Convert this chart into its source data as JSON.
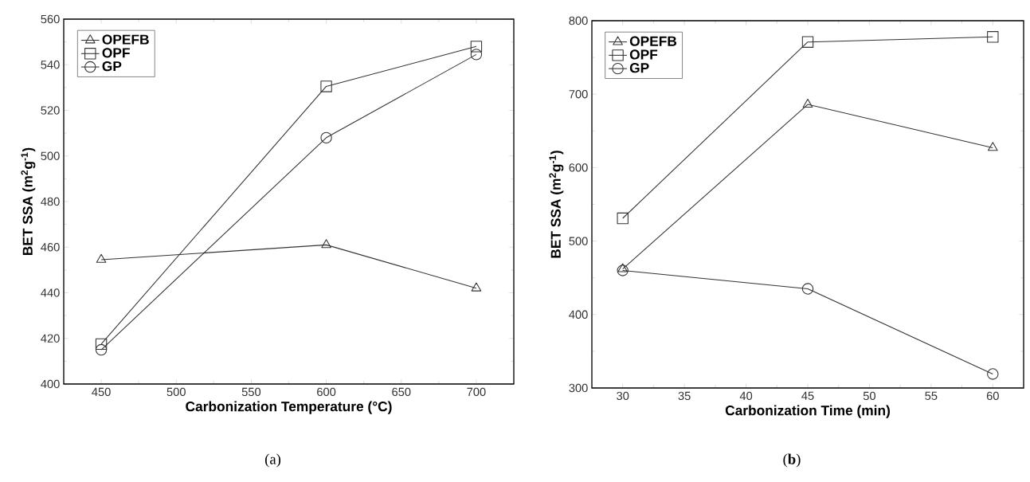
{
  "chart_data": [
    {
      "type": "line",
      "xlabel": "Carbonization Temperature (°C)",
      "ylabel": "BET SSA (m$^{2}$g$^{-1}$)",
      "x": [
        450,
        600,
        700
      ],
      "xlim": [
        425,
        725
      ],
      "xticks": [
        450,
        500,
        550,
        600,
        650,
        700
      ],
      "ylim": [
        400,
        560
      ],
      "yticks": [
        400,
        420,
        440,
        460,
        480,
        500,
        520,
        540,
        560
      ],
      "legend": "top left",
      "grid": false,
      "annotations": [
        "(a)"
      ],
      "series": [
        {
          "name": "OPEFB",
          "color": "#333333",
          "marker": "triangle",
          "values": [
            454.5,
            461,
            442
          ]
        },
        {
          "name": "OPF",
          "color": "#333333",
          "marker": "square",
          "values": [
            417.5,
            530.5,
            548
          ]
        },
        {
          "name": "GP",
          "color": "#333333",
          "marker": "circle",
          "values": [
            415,
            508,
            544.5
          ]
        }
      ]
    },
    {
      "type": "line",
      "xlabel": "Carbonization Time (min)",
      "ylabel": "BET SSA (m$^{2}$g$^{-1}$)",
      "x": [
        30,
        45,
        60
      ],
      "xlim": [
        27.5,
        62.5
      ],
      "xticks": [
        30,
        35,
        40,
        45,
        50,
        55,
        60
      ],
      "ylim": [
        300,
        800
      ],
      "yticks": [
        300,
        400,
        500,
        600,
        700,
        800
      ],
      "legend": "top left",
      "grid": false,
      "annotations": [
        "(**b**)"
      ],
      "series": [
        {
          "name": "OPEFB",
          "color": "#333333",
          "marker": "triangle",
          "values": [
            462,
            686,
            627
          ]
        },
        {
          "name": "OPF",
          "color": "#333333",
          "marker": "square",
          "values": [
            531,
            771,
            778
          ]
        },
        {
          "name": "GP",
          "color": "#333333",
          "marker": "circle",
          "values": [
            460,
            435,
            319
          ]
        }
      ]
    }
  ]
}
